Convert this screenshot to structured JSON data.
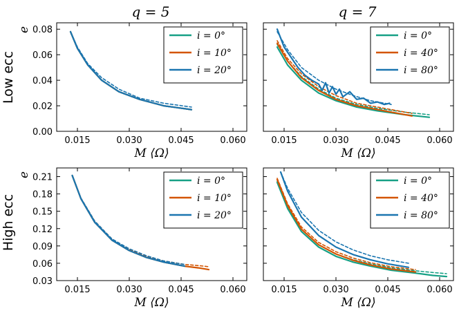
{
  "colors": {
    "green": "#16a085",
    "orange": "#d35400",
    "blue": "#1a75b0",
    "axis": "#000000"
  },
  "figure": {
    "col_titles": [
      "q = 5",
      "q = 7"
    ],
    "row_labels": [
      "Low ecc",
      "High ecc"
    ]
  },
  "chart_data": [
    {
      "id": "low-q5",
      "type": "line",
      "xlabel": "M ⟨Ω⟩",
      "ylabel": "e",
      "xlim": [
        0.009,
        0.064
      ],
      "ylim": [
        0.0,
        0.085
      ],
      "xticks": [
        0.015,
        0.03,
        0.045,
        0.06
      ],
      "xtick_labels": [
        "0.015",
        "0.030",
        "0.045",
        "0.060"
      ],
      "yticks": [
        0.0,
        0.02,
        0.04,
        0.06,
        0.08
      ],
      "ytick_labels": [
        "0.00",
        "0.02",
        "0.04",
        "0.06",
        "0.08"
      ],
      "legend_position": "top-right",
      "series": [
        {
          "name": "i = 0°",
          "color": "green",
          "style": "solid",
          "x": [
            0.013,
            0.015,
            0.018,
            0.022,
            0.027,
            0.033,
            0.04,
            0.048
          ],
          "y": [
            0.078,
            0.065,
            0.052,
            0.04,
            0.031,
            0.025,
            0.02,
            0.017
          ]
        },
        {
          "name": "i = 10°",
          "color": "orange",
          "style": "solid",
          "x": [
            0.013,
            0.015,
            0.018,
            0.022,
            0.027,
            0.033,
            0.04,
            0.048
          ],
          "y": [
            0.078,
            0.065,
            0.052,
            0.04,
            0.031,
            0.025,
            0.02,
            0.017
          ]
        },
        {
          "name": "i = 20°",
          "color": "blue",
          "style": "solid",
          "x": [
            0.013,
            0.015,
            0.018,
            0.022,
            0.027,
            0.033,
            0.04,
            0.048
          ],
          "y": [
            0.078,
            0.065,
            0.052,
            0.04,
            0.031,
            0.025,
            0.02,
            0.017
          ]
        },
        {
          "name": "",
          "color": "blue",
          "style": "dashed",
          "x": [
            0.013,
            0.015,
            0.018,
            0.022,
            0.027,
            0.033,
            0.04,
            0.048
          ],
          "y": [
            0.078,
            0.066,
            0.053,
            0.042,
            0.033,
            0.026,
            0.022,
            0.019
          ]
        }
      ]
    },
    {
      "id": "low-q7",
      "type": "line",
      "xlabel": "M ⟨Ω⟩",
      "ylabel": "",
      "xlim": [
        0.009,
        0.064
      ],
      "ylim": [
        0.0,
        0.085
      ],
      "xticks": [
        0.015,
        0.03,
        0.045,
        0.06
      ],
      "xtick_labels": [
        "0.015",
        "0.030",
        "0.045",
        "0.060"
      ],
      "yticks": [
        0.0,
        0.02,
        0.04,
        0.06,
        0.08
      ],
      "ytick_labels": [],
      "legend_position": "top-right",
      "series": [
        {
          "name": "i = 0°",
          "color": "green",
          "style": "solid",
          "x": [
            0.013,
            0.016,
            0.02,
            0.025,
            0.03,
            0.036,
            0.042,
            0.05,
            0.057
          ],
          "y": [
            0.066,
            0.052,
            0.04,
            0.03,
            0.024,
            0.019,
            0.016,
            0.013,
            0.011
          ]
        },
        {
          "name": "",
          "color": "green",
          "style": "dashed",
          "x": [
            0.013,
            0.016,
            0.02,
            0.025,
            0.03,
            0.036,
            0.042,
            0.05,
            0.057
          ],
          "y": [
            0.068,
            0.055,
            0.043,
            0.033,
            0.026,
            0.021,
            0.018,
            0.015,
            0.013
          ]
        },
        {
          "name": "i = 40°",
          "color": "orange",
          "style": "solid",
          "x": [
            0.013,
            0.016,
            0.02,
            0.025,
            0.03,
            0.036,
            0.042,
            0.048,
            0.052
          ],
          "y": [
            0.069,
            0.055,
            0.042,
            0.032,
            0.025,
            0.02,
            0.017,
            0.014,
            0.012
          ]
        },
        {
          "name": "",
          "color": "orange",
          "style": "dashed",
          "x": [
            0.013,
            0.016,
            0.02,
            0.025,
            0.03,
            0.036,
            0.042,
            0.048,
            0.052
          ],
          "y": [
            0.071,
            0.057,
            0.045,
            0.035,
            0.028,
            0.022,
            0.019,
            0.016,
            0.014
          ]
        },
        {
          "name": "i = 80°",
          "color": "blue",
          "style": "solid",
          "x": [
            0.013,
            0.015,
            0.017,
            0.019,
            0.021,
            0.023,
            0.025,
            0.026,
            0.027,
            0.028,
            0.029,
            0.03,
            0.031,
            0.032,
            0.034,
            0.036,
            0.038,
            0.04,
            0.042,
            0.044,
            0.0455
          ],
          "y": [
            0.08,
            0.066,
            0.058,
            0.05,
            0.044,
            0.04,
            0.037,
            0.032,
            0.038,
            0.03,
            0.035,
            0.029,
            0.033,
            0.027,
            0.031,
            0.025,
            0.026,
            0.022,
            0.023,
            0.021,
            0.022
          ]
        },
        {
          "name": "",
          "color": "blue",
          "style": "dashed",
          "x": [
            0.013,
            0.016,
            0.02,
            0.025,
            0.03,
            0.035,
            0.04,
            0.046
          ],
          "y": [
            0.078,
            0.064,
            0.05,
            0.04,
            0.033,
            0.028,
            0.024,
            0.021
          ]
        }
      ]
    },
    {
      "id": "high-q5",
      "type": "line",
      "xlabel": "M ⟨Ω⟩",
      "ylabel": "e",
      "xlim": [
        0.009,
        0.064
      ],
      "ylim": [
        0.03,
        0.225
      ],
      "xticks": [
        0.015,
        0.03,
        0.045,
        0.06
      ],
      "xtick_labels": [
        "0.015",
        "0.030",
        "0.045",
        "0.060"
      ],
      "yticks": [
        0.03,
        0.06,
        0.09,
        0.12,
        0.15,
        0.18,
        0.21
      ],
      "ytick_labels": [
        "0.03",
        "0.06",
        "0.09",
        "0.12",
        "0.15",
        "0.18",
        "0.21"
      ],
      "legend_position": "top-right",
      "series": [
        {
          "name": "i = 0°",
          "color": "green",
          "style": "solid",
          "x": [
            0.0135,
            0.016,
            0.02,
            0.025,
            0.03,
            0.035,
            0.04,
            0.046
          ],
          "y": [
            0.212,
            0.172,
            0.131,
            0.1,
            0.082,
            0.07,
            0.062,
            0.055
          ]
        },
        {
          "name": "i = 10°",
          "color": "orange",
          "style": "solid",
          "x": [
            0.0135,
            0.016,
            0.02,
            0.025,
            0.03,
            0.035,
            0.04,
            0.046,
            0.05,
            0.053
          ],
          "y": [
            0.212,
            0.172,
            0.131,
            0.1,
            0.082,
            0.07,
            0.062,
            0.055,
            0.052,
            0.049
          ]
        },
        {
          "name": "",
          "color": "orange",
          "style": "dashed",
          "x": [
            0.0135,
            0.016,
            0.02,
            0.025,
            0.03,
            0.035,
            0.04,
            0.046,
            0.05,
            0.053
          ],
          "y": [
            0.212,
            0.173,
            0.133,
            0.102,
            0.084,
            0.072,
            0.064,
            0.058,
            0.056,
            0.054
          ]
        },
        {
          "name": "i = 20°",
          "color": "blue",
          "style": "solid",
          "x": [
            0.0135,
            0.016,
            0.02,
            0.025,
            0.03,
            0.035,
            0.04,
            0.046
          ],
          "y": [
            0.212,
            0.172,
            0.131,
            0.1,
            0.082,
            0.07,
            0.062,
            0.055
          ]
        },
        {
          "name": "",
          "color": "blue",
          "style": "dashed",
          "x": [
            0.0135,
            0.016,
            0.02,
            0.025,
            0.03,
            0.035,
            0.04,
            0.046
          ],
          "y": [
            0.212,
            0.173,
            0.133,
            0.102,
            0.085,
            0.073,
            0.064,
            0.058
          ]
        }
      ]
    },
    {
      "id": "high-q7",
      "type": "line",
      "xlabel": "M ⟨Ω⟩",
      "ylabel": "",
      "xlim": [
        0.009,
        0.064
      ],
      "ylim": [
        0.03,
        0.225
      ],
      "xticks": [
        0.015,
        0.03,
        0.045,
        0.06
      ],
      "xtick_labels": [
        "0.015",
        "0.030",
        "0.045",
        "0.060"
      ],
      "yticks": [
        0.03,
        0.06,
        0.09,
        0.12,
        0.15,
        0.18,
        0.21
      ],
      "ytick_labels": [],
      "legend_position": "top-right",
      "series": [
        {
          "name": "i = 0°",
          "color": "green",
          "style": "solid",
          "x": [
            0.013,
            0.016,
            0.02,
            0.025,
            0.03,
            0.035,
            0.04,
            0.046,
            0.053,
            0.058,
            0.062
          ],
          "y": [
            0.2,
            0.155,
            0.115,
            0.088,
            0.072,
            0.062,
            0.055,
            0.048,
            0.043,
            0.039,
            0.037
          ]
        },
        {
          "name": "",
          "color": "green",
          "style": "dashed",
          "x": [
            0.013,
            0.016,
            0.02,
            0.025,
            0.03,
            0.035,
            0.04,
            0.046,
            0.053,
            0.058,
            0.062
          ],
          "y": [
            0.202,
            0.158,
            0.119,
            0.092,
            0.076,
            0.066,
            0.059,
            0.052,
            0.047,
            0.044,
            0.042
          ]
        },
        {
          "name": "i = 40°",
          "color": "orange",
          "style": "solid",
          "x": [
            0.013,
            0.016,
            0.02,
            0.025,
            0.03,
            0.035,
            0.04,
            0.046,
            0.053
          ],
          "y": [
            0.205,
            0.16,
            0.119,
            0.092,
            0.076,
            0.065,
            0.057,
            0.05,
            0.045
          ]
        },
        {
          "name": "",
          "color": "orange",
          "style": "dashed",
          "x": [
            0.013,
            0.016,
            0.02,
            0.025,
            0.03,
            0.035,
            0.04,
            0.046,
            0.053
          ],
          "y": [
            0.207,
            0.163,
            0.123,
            0.096,
            0.08,
            0.069,
            0.061,
            0.054,
            0.049
          ]
        },
        {
          "name": "i = 80°",
          "color": "blue",
          "style": "solid",
          "x": [
            0.014,
            0.016,
            0.02,
            0.025,
            0.03,
            0.035,
            0.04,
            0.045,
            0.051
          ],
          "y": [
            0.218,
            0.185,
            0.14,
            0.108,
            0.088,
            0.075,
            0.066,
            0.059,
            0.053
          ]
        },
        {
          "name": "",
          "color": "blue",
          "style": "dashed",
          "x": [
            0.014,
            0.016,
            0.02,
            0.025,
            0.03,
            0.035,
            0.04,
            0.045,
            0.051
          ],
          "y": [
            0.218,
            0.19,
            0.148,
            0.117,
            0.097,
            0.083,
            0.073,
            0.066,
            0.06
          ]
        }
      ]
    }
  ]
}
